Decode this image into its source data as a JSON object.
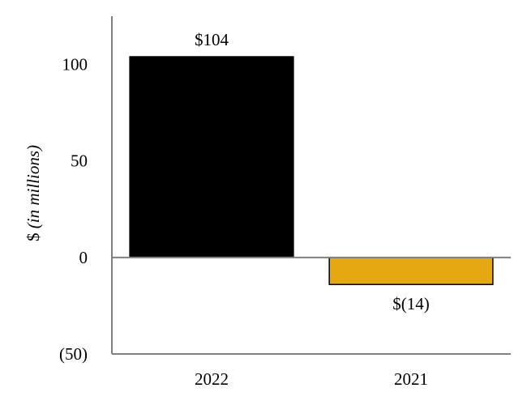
{
  "chart_data": {
    "type": "bar",
    "categories": [
      "2022",
      "2021"
    ],
    "values": [
      104,
      -14
    ],
    "data_labels": [
      "$104",
      "$(14)"
    ],
    "bar_colors": [
      "#000000",
      "#E5A812"
    ],
    "bar_edge_color": "#000000",
    "axis_color": "#808080",
    "title": "",
    "xlabel": "",
    "ylabel": {
      "prefix": "$ ",
      "italic": "(in millions)"
    },
    "ylim": [
      -50,
      125
    ],
    "yticks": [
      100,
      50,
      0,
      -50
    ],
    "ytick_labels": [
      "100",
      "50",
      "0",
      "(50)"
    ],
    "grid": false,
    "legend": "none"
  }
}
